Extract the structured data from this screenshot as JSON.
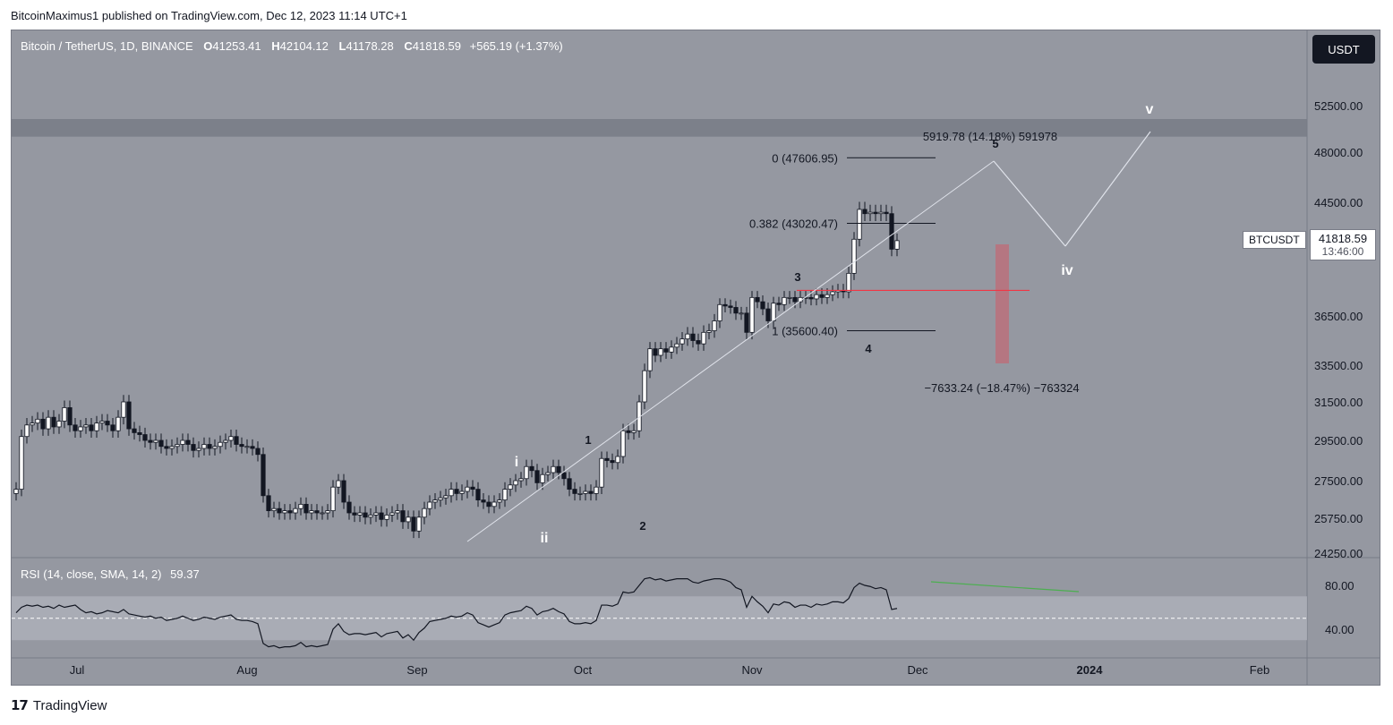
{
  "header": {
    "caption": "BitcoinMaximus1 published on TradingView.com, Dec 12, 2023 11:14 UTC+1"
  },
  "legend": {
    "symbol": "Bitcoin / TetherUS, 1D, BINANCE",
    "open_label": "O",
    "open": "41253.41",
    "high_label": "H",
    "high": "42104.12",
    "low_label": "L",
    "low": "41178.28",
    "close_label": "C",
    "close": "41818.59",
    "change": "+565.19 (+1.37%)"
  },
  "rsi_legend": {
    "label": "RSI (14, close, SMA, 14, 2)",
    "value": "59.37"
  },
  "currency_button": {
    "label": "USDT"
  },
  "price_tag": {
    "symbol": "BTCUSDT",
    "price": "41818.59",
    "countdown": "13:46:00"
  },
  "footer": {
    "brand": "TradingView",
    "logo_icon": "tradingview-logo-icon"
  },
  "colors": {
    "background": "#9598a1",
    "bull_candle": "#ffffff",
    "bear_candle": "#131722",
    "resistance_band": "#787b86",
    "horizontal_line": "#f23645",
    "trendline": "#4caf50",
    "projection": "#d1d4dc"
  },
  "chart_data": [
    {
      "type": "candlestick",
      "title": "",
      "y_axis": {
        "ticks": [
          52500,
          48000,
          44500,
          36500,
          33500,
          31500,
          29500,
          27500,
          25750,
          24250
        ],
        "labels": [
          "52500.00",
          "48000.00",
          "44500.00",
          "36500.00",
          "33500.00",
          "31500.00",
          "29500.00",
          "27500.00",
          "25750.00",
          "24250.00"
        ]
      },
      "x_axis": {
        "labels": [
          "Jul",
          "Aug",
          "Sep",
          "Oct",
          "Nov",
          "Dec",
          "2024",
          "Feb"
        ]
      },
      "candles_close_approx": [
        27100,
        29700,
        30300,
        30400,
        30600,
        30100,
        30700,
        30200,
        30500,
        31200,
        30300,
        30000,
        30200,
        30300,
        30000,
        30400,
        30500,
        30300,
        30000,
        30700,
        31500,
        30100,
        29900,
        29800,
        29500,
        29400,
        29500,
        29200,
        29100,
        29200,
        29300,
        29500,
        29300,
        29000,
        29100,
        29300,
        29100,
        29200,
        29400,
        29500,
        29700,
        29300,
        29200,
        29200,
        29100,
        28800,
        26800,
        26100,
        26200,
        26000,
        26100,
        26000,
        26200,
        26400,
        26000,
        26100,
        26000,
        26000,
        26100,
        27200,
        27500,
        26500,
        26000,
        25900,
        26000,
        25800,
        25900,
        26000,
        25700,
        25900,
        26000,
        26100,
        25600,
        25800,
        25200,
        25800,
        26200,
        26500,
        26600,
        26700,
        26800,
        27100,
        26900,
        27000,
        27200,
        27100,
        26600,
        26500,
        26300,
        26500,
        26600,
        27100,
        27300,
        27500,
        27600,
        28200,
        28000,
        27400,
        27800,
        27900,
        28200,
        27900,
        27600,
        27100,
        26900,
        26900,
        27000,
        26900,
        27200,
        28600,
        28500,
        28400,
        28700,
        30000,
        29900,
        30000,
        31500,
        33200,
        34500,
        34100,
        34500,
        34300,
        34600,
        34800,
        35100,
        35400,
        35000,
        34800,
        35500,
        35600,
        36200,
        37300,
        37200,
        37100,
        36700,
        36700,
        35500,
        37800,
        37500,
        37000,
        36200,
        37400,
        37300,
        37800,
        37800,
        37500,
        37800,
        37800,
        37700,
        38000,
        37800,
        38000,
        38200,
        38300,
        38200,
        39500,
        41900,
        44000,
        43700,
        43800,
        43700,
        43800,
        43700,
        41200,
        41800
      ],
      "annotations": {
        "fib_levels": [
          {
            "label": "0 (47606.95)",
            "price": 47606.95
          },
          {
            "label": "0.382 (43020.47)",
            "price": 43020.47
          },
          {
            "label": "1 (35600.40)",
            "price": 35600.4
          }
        ],
        "measure_up": "5919.78 (14.18%) 591978",
        "measure_down": "−7633.24 (−18.47%) −763324",
        "wave_labels": [
          "i",
          "ii",
          "1",
          "2",
          "3",
          "4",
          "5",
          "iv",
          "v"
        ],
        "horizontal_level": 38300,
        "resistance_zone": [
          49500,
          51200
        ]
      }
    },
    {
      "type": "line",
      "title": "RSI (14, close, SMA, 14, 2)",
      "y_axis": {
        "ticks": [
          80,
          40
        ],
        "labels": [
          "80.00",
          "40.00"
        ]
      },
      "band": [
        30,
        70
      ],
      "mid": 50,
      "values_approx": [
        55,
        60,
        62,
        61,
        62,
        60,
        61,
        59,
        62,
        60,
        61,
        62,
        58,
        55,
        56,
        54,
        55,
        57,
        56,
        55,
        58,
        54,
        53,
        52,
        51,
        52,
        50,
        51,
        48,
        49,
        50,
        52,
        50,
        48,
        49,
        51,
        50,
        49,
        51,
        52,
        53,
        49,
        48,
        48,
        47,
        45,
        27,
        24,
        25,
        23,
        24,
        24,
        25,
        28,
        24,
        25,
        24,
        25,
        26,
        40,
        45,
        38,
        35,
        36,
        36,
        35,
        36,
        37,
        33,
        36,
        37,
        38,
        32,
        35,
        30,
        37,
        41,
        47,
        48,
        49,
        50,
        52,
        51,
        52,
        55,
        53,
        46,
        44,
        42,
        44,
        46,
        53,
        55,
        56,
        57,
        61,
        59,
        53,
        56,
        57,
        59,
        56,
        54,
        47,
        45,
        45,
        46,
        45,
        48,
        62,
        62,
        61,
        63,
        74,
        73,
        74,
        80,
        86,
        87,
        85,
        86,
        84,
        85,
        86,
        86,
        86,
        83,
        82,
        84,
        85,
        86,
        86,
        85,
        83,
        78,
        76,
        60,
        70,
        65,
        61,
        55,
        63,
        62,
        65,
        64,
        60,
        62,
        62,
        60,
        63,
        62,
        63,
        65,
        65,
        64,
        68,
        78,
        82,
        80,
        79,
        77,
        78,
        76,
        58,
        59
      ],
      "last": 59.37
    }
  ]
}
